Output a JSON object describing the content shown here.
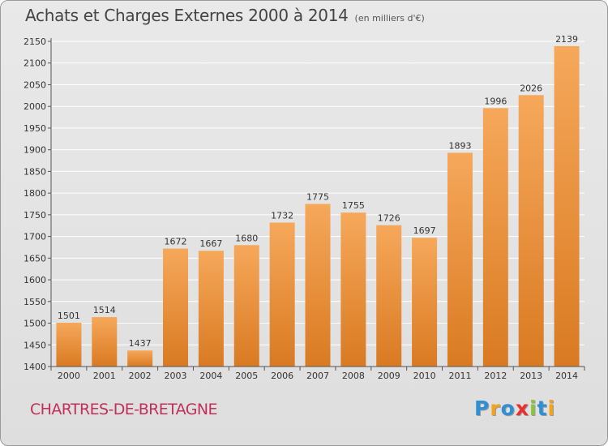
{
  "title": "Achats et Charges Externes 2000 à 2014",
  "subtitle": "(en milliers d'€)",
  "commune": "CHARTRES-DE-BRETAGNE",
  "logo": {
    "text": "Proxiti",
    "letters": [
      {
        "ch": "P",
        "color": "#2f8fd4"
      },
      {
        "ch": "r",
        "color": "#f2a21c"
      },
      {
        "ch": "o",
        "color": "#2f8fd4"
      },
      {
        "ch": "x",
        "color": "#e8312f"
      },
      {
        "ch": "i",
        "color": "#8cc43c"
      },
      {
        "ch": "t",
        "color": "#2f8fd4"
      },
      {
        "ch": "i",
        "color": "#f2a21c"
      }
    ]
  },
  "colors": {
    "bar_top": "#f6a85a",
    "bar_bottom": "#d97a22",
    "grid": "#ffffff",
    "axis": "#555555",
    "text": "#333333"
  },
  "chart_data": {
    "type": "bar",
    "categories": [
      "2000",
      "2001",
      "2002",
      "2003",
      "2004",
      "2005",
      "2006",
      "2007",
      "2008",
      "2009",
      "2010",
      "2011",
      "2012",
      "2013",
      "2014"
    ],
    "values": [
      1501,
      1514,
      1437,
      1672,
      1667,
      1680,
      1732,
      1775,
      1755,
      1726,
      1697,
      1893,
      1996,
      2026,
      2139
    ],
    "data_labels": [
      "1501",
      "1514",
      "1437",
      "1672",
      "1667",
      "1680",
      "1732",
      "1775",
      "1755",
      "1726",
      "1697",
      "1893",
      "1996",
      "2026",
      "2139"
    ],
    "title": "Achats et Charges Externes 2000 à 2014",
    "ylim": [
      1400,
      2150
    ],
    "yticks": [
      1400,
      1450,
      1500,
      1550,
      1600,
      1650,
      1700,
      1750,
      1800,
      1850,
      1900,
      1950,
      2000,
      2050,
      2100,
      2150
    ],
    "grid": true,
    "legend": "none"
  }
}
